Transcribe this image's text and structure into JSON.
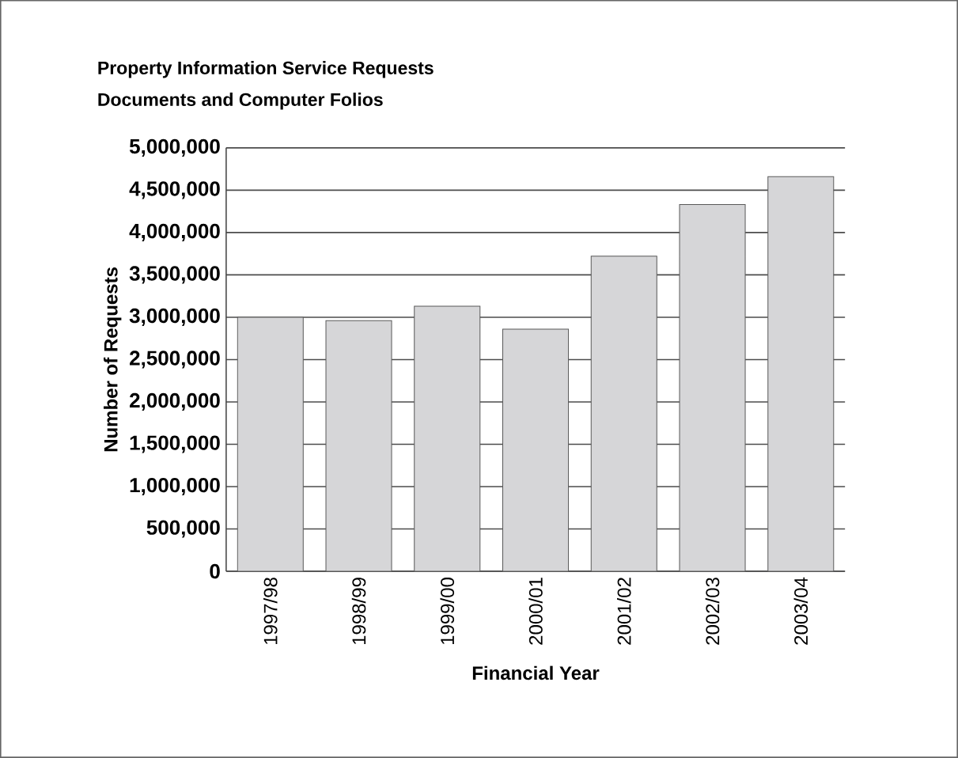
{
  "chart_data": {
    "type": "bar",
    "title": "Property Information Service Requests",
    "subtitle": "Documents and Computer Folios",
    "xlabel": "Financial Year",
    "ylabel": "Number of Requests",
    "categories": [
      "1997/98",
      "1998/99",
      "1999/00",
      "2000/01",
      "2001/02",
      "2002/03",
      "2003/04"
    ],
    "values": [
      3000000,
      2960000,
      3130000,
      2860000,
      3720000,
      4330000,
      4660000
    ],
    "color": "#d6d6d8",
    "ylim": [
      0,
      5000000
    ],
    "yticks": [
      {
        "value": 0,
        "label": "0"
      },
      {
        "value": 500000,
        "label": "500,000"
      },
      {
        "value": 1000000,
        "label": "1,000,000"
      },
      {
        "value": 1500000,
        "label": "1,500,000"
      },
      {
        "value": 2000000,
        "label": "2,000,000"
      },
      {
        "value": 2500000,
        "label": "2,500,000"
      },
      {
        "value": 3000000,
        "label": "3,000,000"
      },
      {
        "value": 3500000,
        "label": "3,500,000"
      },
      {
        "value": 4000000,
        "label": "4,000,000"
      },
      {
        "value": 4500000,
        "label": "4,500,000"
      },
      {
        "value": 5000000,
        "label": "5,000,000"
      }
    ],
    "grid": "y"
  }
}
